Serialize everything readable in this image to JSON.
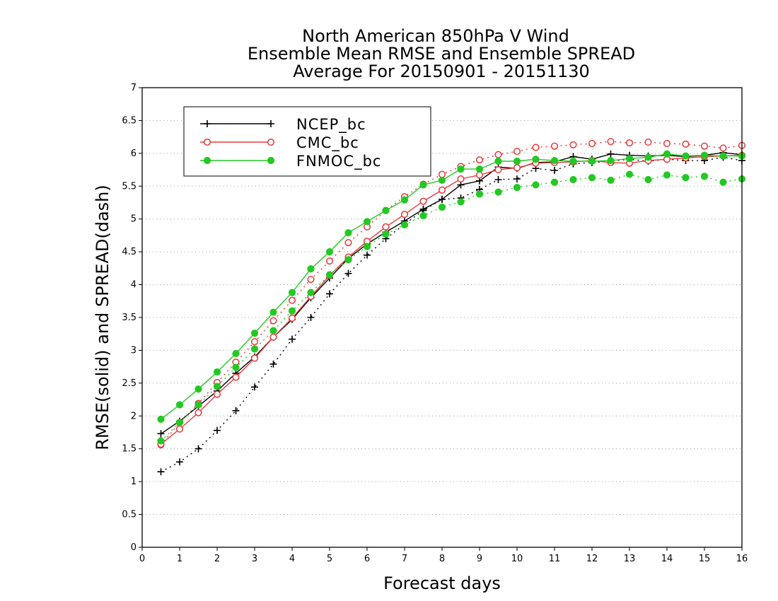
{
  "colors": {
    "NCEP_bc": "#000000",
    "CMC_bc": "#e8383c",
    "FNMOC_bc": "#22c922",
    "grid": "#9a9a9a"
  },
  "chart_data": {
    "type": "line",
    "title": [
      "North American 850hPa V Wind",
      "Ensemble Mean RMSE and Ensemble SPREAD",
      "Average For 20150901 - 20151130"
    ],
    "xlabel": "Forecast days",
    "ylabel": "RMSE(solid) and SPREAD(dash)",
    "xlim": [
      0,
      16
    ],
    "ylim": [
      0,
      7
    ],
    "x_ticks": [
      "0",
      "1",
      "2",
      "3",
      "4",
      "5",
      "6",
      "7",
      "8",
      "9",
      "10",
      "11",
      "12",
      "13",
      "14",
      "15",
      "16"
    ],
    "y_ticks": [
      "0",
      "0.5",
      "1",
      "1.5",
      "2",
      "2.5",
      "3",
      "3.5",
      "4",
      "4.5",
      "5",
      "5.5",
      "6",
      "6.5",
      "7"
    ],
    "grid": "horizontal dotted",
    "legend_position": "top-left",
    "x": [
      0.5,
      1,
      1.5,
      2,
      2.5,
      3,
      3.5,
      4,
      4.5,
      5,
      5.5,
      6,
      6.5,
      7,
      7.5,
      8,
      8.5,
      9,
      9.5,
      10,
      10.5,
      11,
      11.5,
      12,
      12.5,
      13,
      13.5,
      14,
      14.5,
      15,
      15.5,
      16
    ],
    "series": [
      {
        "name": "NCEP_bc",
        "marker": "plus",
        "rmse": [
          1.73,
          1.92,
          2.15,
          2.38,
          2.65,
          2.9,
          3.2,
          3.47,
          3.8,
          4.1,
          4.4,
          4.62,
          4.8,
          4.97,
          5.15,
          5.3,
          5.52,
          5.58,
          5.79,
          5.77,
          5.86,
          5.87,
          5.95,
          5.91,
          5.99,
          5.97,
          5.96,
          5.97,
          5.95,
          5.97,
          6.01,
          5.98
        ],
        "spread": [
          1.15,
          1.3,
          1.5,
          1.78,
          2.08,
          2.44,
          2.79,
          3.17,
          3.5,
          3.86,
          4.17,
          4.45,
          4.7,
          4.92,
          5.13,
          5.3,
          5.32,
          5.45,
          5.6,
          5.61,
          5.77,
          5.74,
          5.84,
          5.86,
          5.88,
          5.91,
          5.88,
          5.91,
          5.89,
          5.89,
          5.94,
          5.89
        ]
      },
      {
        "name": "CMC_bc",
        "marker": "open-circle",
        "rmse": [
          1.57,
          1.8,
          2.05,
          2.33,
          2.59,
          2.88,
          3.2,
          3.49,
          3.82,
          4.14,
          4.42,
          4.66,
          4.88,
          5.07,
          5.27,
          5.44,
          5.61,
          5.67,
          5.75,
          5.78,
          5.85,
          5.86,
          5.87,
          5.89,
          5.86,
          5.85,
          5.89,
          5.91,
          5.93,
          5.95,
          5.96,
          5.97
        ],
        "spread": [
          1.56,
          1.9,
          2.19,
          2.51,
          2.82,
          3.13,
          3.45,
          3.76,
          4.08,
          4.36,
          4.64,
          4.88,
          5.13,
          5.34,
          5.53,
          5.68,
          5.8,
          5.9,
          5.98,
          6.03,
          6.09,
          6.11,
          6.13,
          6.15,
          6.18,
          6.16,
          6.17,
          6.15,
          6.14,
          6.11,
          6.08,
          6.12
        ]
      },
      {
        "name": "FNMOC_bc",
        "marker": "filled-circle",
        "rmse": [
          1.95,
          2.17,
          2.41,
          2.67,
          2.95,
          3.26,
          3.58,
          3.88,
          4.24,
          4.5,
          4.79,
          4.96,
          5.13,
          5.29,
          5.52,
          5.59,
          5.76,
          5.76,
          5.88,
          5.88,
          5.91,
          5.89,
          5.88,
          5.88,
          5.89,
          5.92,
          5.94,
          5.99,
          5.96,
          5.97,
          5.96,
          5.96
        ],
        "spread": [
          1.62,
          1.9,
          2.17,
          2.45,
          2.74,
          3.02,
          3.3,
          3.6,
          3.88,
          4.15,
          4.38,
          4.58,
          4.77,
          4.91,
          5.05,
          5.18,
          5.26,
          5.38,
          5.41,
          5.48,
          5.52,
          5.56,
          5.6,
          5.63,
          5.59,
          5.68,
          5.6,
          5.67,
          5.63,
          5.65,
          5.56,
          5.61
        ]
      }
    ]
  }
}
